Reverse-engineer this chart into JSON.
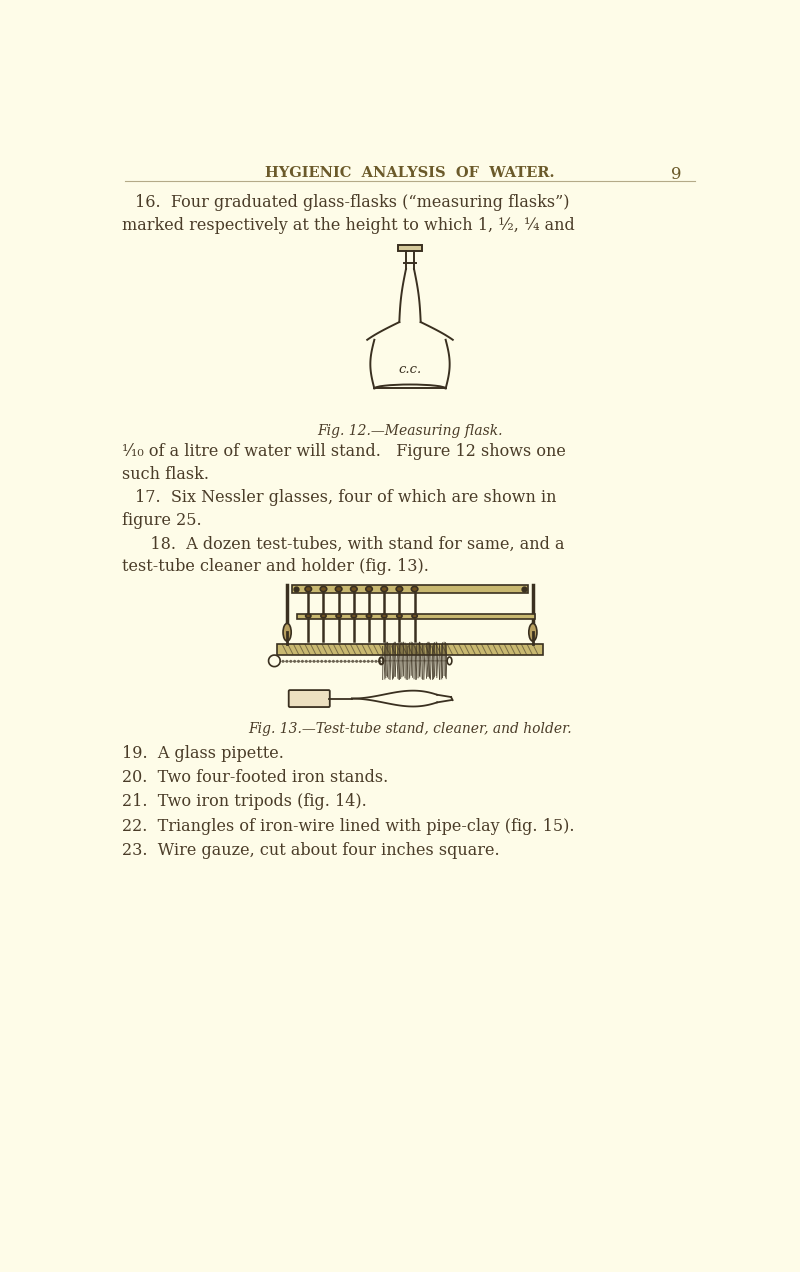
{
  "bg_color": "#FEFCE8",
  "text_color": "#4a3c28",
  "header_color": "#6b5a2a",
  "page_width": 8.0,
  "page_height": 12.72,
  "header_text": "HYGIENIC  ANALYSIS  OF  WATER.",
  "page_num": "9",
  "para1_line1": "16.  Four graduated glass-flasks (“measuring flasks”)",
  "para1_line2": "marked respectively at the height to which 1, ½, ¼ and",
  "fig12_caption": "Fig. 12.—Measuring flask.",
  "para2_line1": "¹⁄₁₀ of a litre of water will stand.   Figure 12 shows one",
  "para2_line2": "such flask.",
  "para3": "17.  Six Nessler glasses, four of which are shown in",
  "para3b": "figure 25.",
  "para4_line1": "   18.  A dozen test-tubes, with stand for same, and a",
  "para4_line2": "test-tube cleaner and holder (fig. 13).",
  "fig13_caption": "Fig. 13.—Test-tube stand, cleaner, and holder.",
  "para5": "19.  A glass pipette.",
  "para6": "20.  Two four-footed iron stands.",
  "para7": "21.  Two iron tripods (fig. 14).",
  "para8": "22.  Triangles of iron-wire lined with pipe-clay (fig. 15).",
  "para9": "23.  Wire gauze, cut about four inches square."
}
